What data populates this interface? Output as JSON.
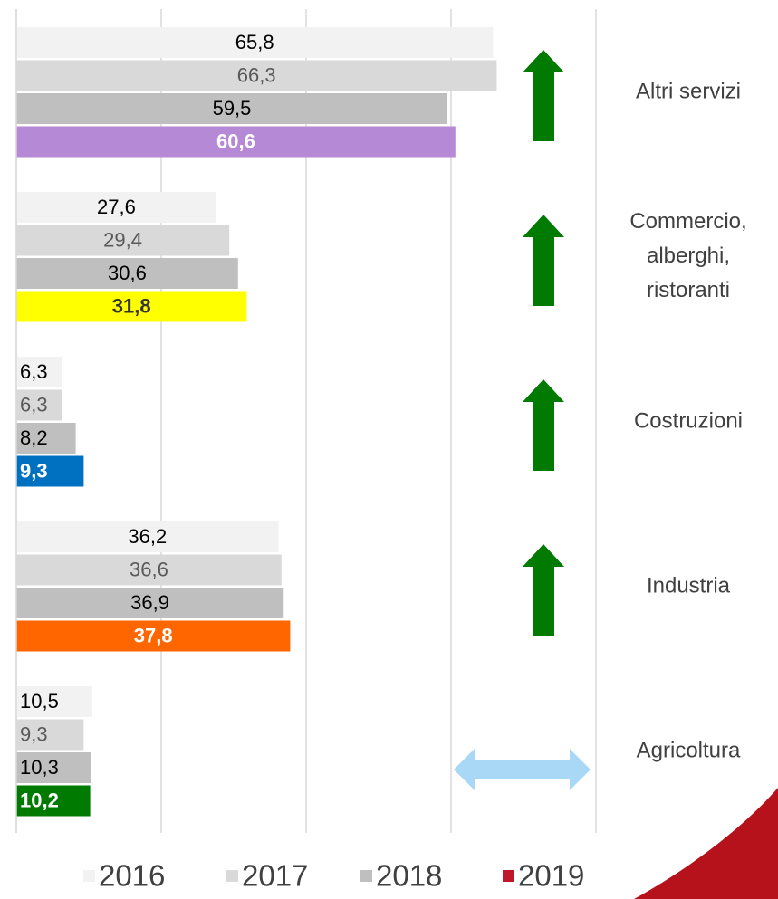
{
  "chart_data": {
    "type": "bar",
    "orientation": "horizontal",
    "categories": [
      "Altri servizi",
      "Commercio, alberghi, ristoranti",
      "Costruzioni",
      "Industria",
      "Agricoltura"
    ],
    "series": [
      {
        "name": "2016",
        "color": "#f2f2f2",
        "values": [
          65.8,
          27.6,
          6.3,
          36.2,
          10.5
        ],
        "value_labels": [
          "65,8",
          "27,6",
          "6,3",
          "36,2",
          "10,5"
        ]
      },
      {
        "name": "2017",
        "color": "#d9d9d9",
        "values": [
          66.3,
          29.4,
          6.3,
          36.6,
          9.3
        ],
        "value_labels": [
          "66,3",
          "29,4",
          "6,3",
          "36,6",
          "9,3"
        ]
      },
      {
        "name": "2018",
        "color": "#bfbfbf",
        "values": [
          59.5,
          30.6,
          8.2,
          36.9,
          10.3
        ],
        "value_labels": [
          "59,5",
          "30,6",
          "8,2",
          "36,9",
          "10,3"
        ]
      },
      {
        "name": "2019",
        "color": "#c0182b",
        "colors": [
          "#b589d6",
          "#ffff00",
          "#0070c0",
          "#ff6600",
          "#007a00"
        ],
        "values": [
          60.6,
          31.8,
          9.3,
          37.8,
          10.2
        ],
        "value_labels": [
          "60,6",
          "31,8",
          "9,3",
          "37,8",
          "10,2"
        ]
      }
    ],
    "xlim": [
      0,
      80
    ],
    "xticks": [
      0,
      20,
      40,
      60,
      80
    ],
    "grid": true
  }
}
